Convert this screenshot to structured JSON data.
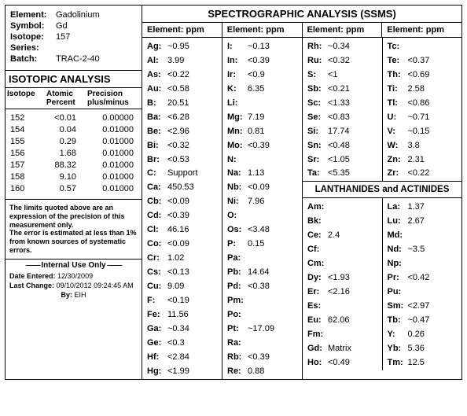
{
  "identity": {
    "element_label": "Element:",
    "element_val": "Gadolinium",
    "symbol_label": "Symbol:",
    "symbol_val": "Gd",
    "isotope_label": "Isotope:",
    "isotope_val": "157",
    "series_label": "Series:",
    "series_val": "",
    "batch_label": "Batch:",
    "batch_val": "TRAC-2-40"
  },
  "isotopic": {
    "header": "ISOTOPIC ANALYSIS",
    "col1": "Isotope",
    "col2": "Atomic Percent",
    "col3": "Precision plus/minus",
    "rows": [
      {
        "iso": "152",
        "pct": "<0.01",
        "prec": "0.00000"
      },
      {
        "iso": "154",
        "pct": "0.04",
        "prec": "0.01000"
      },
      {
        "iso": "155",
        "pct": "0.29",
        "prec": "0.01000"
      },
      {
        "iso": "156",
        "pct": "1.68",
        "prec": "0.01000"
      },
      {
        "iso": "157",
        "pct": "88.32",
        "prec": "0.01000"
      },
      {
        "iso": "158",
        "pct": "9.10",
        "prec": "0.01000"
      },
      {
        "iso": "160",
        "pct": "0.57",
        "prec": "0.01000"
      }
    ]
  },
  "note": {
    "line1": "The limits quoted above are an expression of the precision of this measurement only.",
    "line2": "The error is estimated at less than 1% from known sources of systematic errors."
  },
  "internal": {
    "header": "Internal Use Only",
    "entered_l": "Date Entered:",
    "entered_v": "12/30/2009",
    "change_l": "Last Change:",
    "change_v": "09/10/2012 09:24:45 AM",
    "by_l": "By:",
    "by_v": "EIH"
  },
  "ssms": {
    "title": "SPECTROGRAPHIC ANALYSIS   (SSMS)",
    "colhdr": "Element: ppm",
    "col1": [
      {
        "el": "Ag:",
        "v": "~0.95"
      },
      {
        "el": "Al:",
        "v": "3.99"
      },
      {
        "el": "As:",
        "v": "<0.22"
      },
      {
        "el": "Au:",
        "v": "<0.58"
      },
      {
        "el": "B:",
        "v": "20.51"
      },
      {
        "el": "Ba:",
        "v": "<6.28"
      },
      {
        "el": "Be:",
        "v": "<2.96"
      },
      {
        "el": "Bi:",
        "v": "<0.32"
      },
      {
        "el": "Br:",
        "v": "<0.53"
      },
      {
        "el": "C:",
        "v": "Support"
      },
      {
        "el": "Ca:",
        "v": "450.53"
      },
      {
        "el": "Cb:",
        "v": "<0.09"
      },
      {
        "el": "Cd:",
        "v": "<0.39"
      },
      {
        "el": "Cl:",
        "v": "46.16"
      },
      {
        "el": "Co:",
        "v": "<0.09"
      },
      {
        "el": "Cr:",
        "v": "1.02"
      },
      {
        "el": "Cs:",
        "v": "<0.13"
      },
      {
        "el": "Cu:",
        "v": "9.09"
      },
      {
        "el": "F:",
        "v": "<0.19"
      },
      {
        "el": "Fe:",
        "v": "11.56"
      },
      {
        "el": "Ga:",
        "v": "~0.34"
      },
      {
        "el": "Ge:",
        "v": "<0.3"
      },
      {
        "el": "Hf:",
        "v": "<2.84"
      },
      {
        "el": "Hg:",
        "v": "<1.99"
      }
    ],
    "col2": [
      {
        "el": "I:",
        "v": "~0.13"
      },
      {
        "el": "In:",
        "v": "<0.39"
      },
      {
        "el": "Ir:",
        "v": "<0.9"
      },
      {
        "el": "K:",
        "v": "6.35"
      },
      {
        "el": "Li:",
        "v": ""
      },
      {
        "el": "Mg:",
        "v": "7.19"
      },
      {
        "el": "Mn:",
        "v": "0.81"
      },
      {
        "el": "Mo:",
        "v": "<0.39"
      },
      {
        "el": "N:",
        "v": ""
      },
      {
        "el": "Na:",
        "v": "1.13"
      },
      {
        "el": "Nb:",
        "v": "<0.09"
      },
      {
        "el": "Ni:",
        "v": "7.96"
      },
      {
        "el": "O:",
        "v": ""
      },
      {
        "el": "Os:",
        "v": "<3.48"
      },
      {
        "el": "P:",
        "v": "0.15"
      },
      {
        "el": "Pa:",
        "v": ""
      },
      {
        "el": "Pb:",
        "v": "14.64"
      },
      {
        "el": "Pd:",
        "v": "<0.38"
      },
      {
        "el": "Pm:",
        "v": ""
      },
      {
        "el": "Po:",
        "v": ""
      },
      {
        "el": "Pt:",
        "v": "~17.09"
      },
      {
        "el": "Ra:",
        "v": ""
      },
      {
        "el": "Rb:",
        "v": "<0.39"
      },
      {
        "el": "Re:",
        "v": "0.88"
      }
    ],
    "col3_top": [
      {
        "el": "Rh:",
        "v": "~0.34"
      },
      {
        "el": "Ru:",
        "v": "<0.32"
      },
      {
        "el": "S:",
        "v": "<1"
      },
      {
        "el": "Sb:",
        "v": "<0.21"
      },
      {
        "el": "Sc:",
        "v": "<1.33"
      },
      {
        "el": "Se:",
        "v": "<0.83"
      },
      {
        "el": "Si:",
        "v": "17.74"
      },
      {
        "el": "Sn:",
        "v": "<0.48"
      },
      {
        "el": "Sr:",
        "v": "<1.05"
      },
      {
        "el": "Ta:",
        "v": "<5.35"
      }
    ],
    "col4_top": [
      {
        "el": "Tc:",
        "v": ""
      },
      {
        "el": "Te:",
        "v": "<0.37"
      },
      {
        "el": "Th:",
        "v": "<0.69"
      },
      {
        "el": "Ti:",
        "v": "2.58"
      },
      {
        "el": "Tl:",
        "v": "<0.86"
      },
      {
        "el": "U:",
        "v": "~0.71"
      },
      {
        "el": "V:",
        "v": "~0.15"
      },
      {
        "el": "W:",
        "v": "3.8"
      },
      {
        "el": "Zn:",
        "v": "2.31"
      },
      {
        "el": "Zr:",
        "v": "<0.22"
      }
    ]
  },
  "lanth": {
    "header": "LANTHANIDES and ACTINIDES",
    "colA": [
      {
        "el": "Am:",
        "v": ""
      },
      {
        "el": "Bk:",
        "v": ""
      },
      {
        "el": "Ce:",
        "v": "2.4"
      },
      {
        "el": "Cf:",
        "v": ""
      },
      {
        "el": "Cm:",
        "v": ""
      },
      {
        "el": "Dy:",
        "v": "<1.93"
      },
      {
        "el": "Er:",
        "v": "<2.16"
      },
      {
        "el": "Es:",
        "v": ""
      },
      {
        "el": "Eu:",
        "v": "62.06"
      },
      {
        "el": "Fm:",
        "v": ""
      },
      {
        "el": "Gd:",
        "v": "Matrix"
      },
      {
        "el": "Ho:",
        "v": "<0.49"
      }
    ],
    "colB": [
      {
        "el": "La:",
        "v": "1.37"
      },
      {
        "el": "Lu:",
        "v": "2.67"
      },
      {
        "el": "Md:",
        "v": ""
      },
      {
        "el": "Nd:",
        "v": "~3.5"
      },
      {
        "el": "Np:",
        "v": ""
      },
      {
        "el": "Pr:",
        "v": "<0.42"
      },
      {
        "el": "Pu:",
        "v": ""
      },
      {
        "el": "Sm:",
        "v": "<2.97"
      },
      {
        "el": "Tb:",
        "v": "~0.47"
      },
      {
        "el": "Y:",
        "v": "0.26"
      },
      {
        "el": "Yb:",
        "v": "5.36"
      },
      {
        "el": "Tm:",
        "v": "12.5"
      }
    ]
  }
}
